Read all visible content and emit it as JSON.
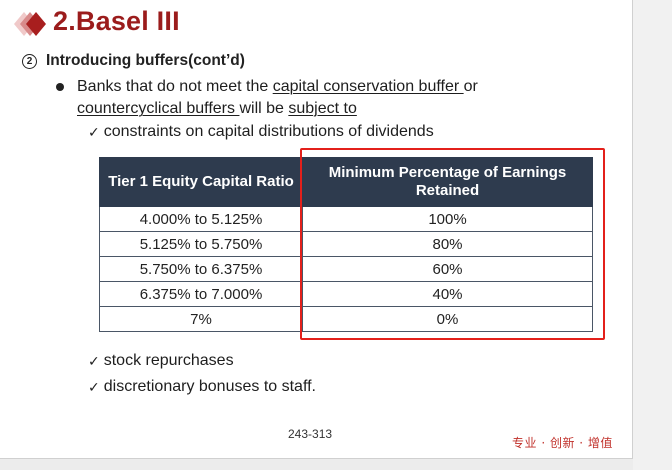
{
  "slide": {
    "title": "2.Basel III",
    "subhead_number": "2",
    "subhead": "Introducing buffers(cont’d)",
    "bullet": {
      "part1": "Banks that do not meet the ",
      "link1": "capital conservation buffer ",
      "part2": "or ",
      "link2": "countercyclical buffers ",
      "part3": "will be ",
      "link3": "subject to"
    },
    "checks": {
      "first": "constraints on capital distributions of dividends",
      "second": "stock repurchases",
      "third": "discretionary bonuses to staff."
    },
    "check_glyph": "✓",
    "table": {
      "headers": [
        "Tier 1 Equity Capital Ratio",
        "Minimum Percentage of Earnings Retained"
      ],
      "rows": [
        [
          "4.000% to 5.125%",
          "100%"
        ],
        [
          "5.125% to 5.750%",
          "80%"
        ],
        [
          "5.750% to 6.375%",
          "60%"
        ],
        [
          "6.375% to 7.000%",
          "40%"
        ],
        [
          "7%",
          "0%"
        ]
      ]
    },
    "page_number": "243-313",
    "slogan": "专业 · 创新 · 增值"
  },
  "colors": {
    "title": "#9b1c1c",
    "header_bg": "#2e3b4e",
    "highlight": "#e3201b",
    "slogan": "#c0302a"
  },
  "icons": {
    "logo": "red-diamonds-logo-icon",
    "bullet": "filled-circle-bullet-icon",
    "check": "checkmark-icon"
  }
}
